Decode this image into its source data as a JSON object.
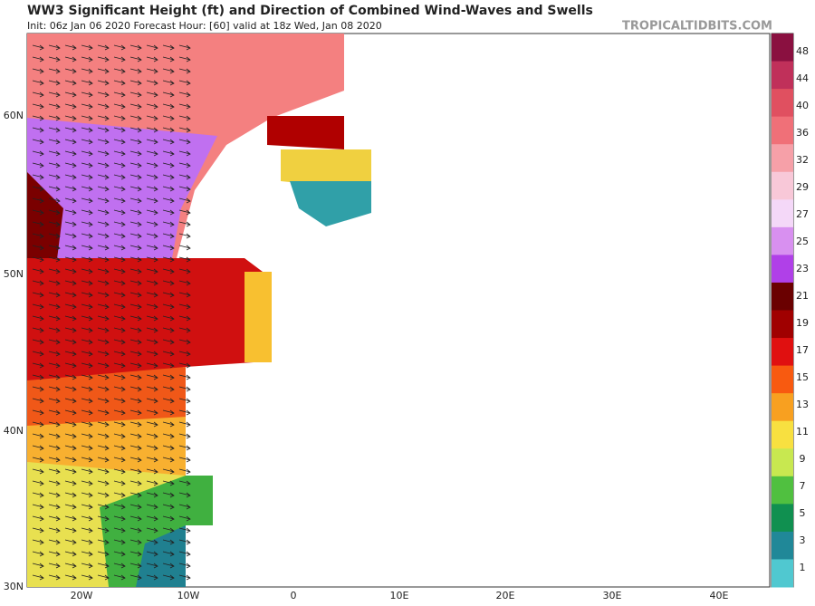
{
  "header": {
    "title": "WW3 Significant Height (ft) and Direction of Combined Wind-Waves and Swells",
    "subtitle": "Init: 06z Jan 06 2020   Forecast Hour: [60]   valid at 18z Wed, Jan 08 2020",
    "credit": "TROPICALTIDBITS.COM"
  },
  "map": {
    "lat_labels": [
      "60N",
      "50N",
      "40N",
      "30N"
    ],
    "lon_labels": [
      "20W",
      "10W",
      "0",
      "10E",
      "20E",
      "30E",
      "40E"
    ]
  },
  "colorbar": {
    "labels": [
      48,
      44,
      40,
      36,
      32,
      29,
      27,
      25,
      23,
      21,
      19,
      17,
      15,
      13,
      11,
      9,
      7,
      5,
      3,
      1
    ],
    "colors": [
      "#8a1040",
      "#c0305a",
      "#e05060",
      "#f07078",
      "#f6a0a8",
      "#f8c8d8",
      "#f4d8f8",
      "#d890f0",
      "#b040e8",
      "#6a0000",
      "#a00000",
      "#e01010",
      "#f85a10",
      "#f8a020",
      "#f8e040",
      "#c8e850",
      "#50c040",
      "#109050",
      "#208898",
      "#50c8d0"
    ]
  }
}
